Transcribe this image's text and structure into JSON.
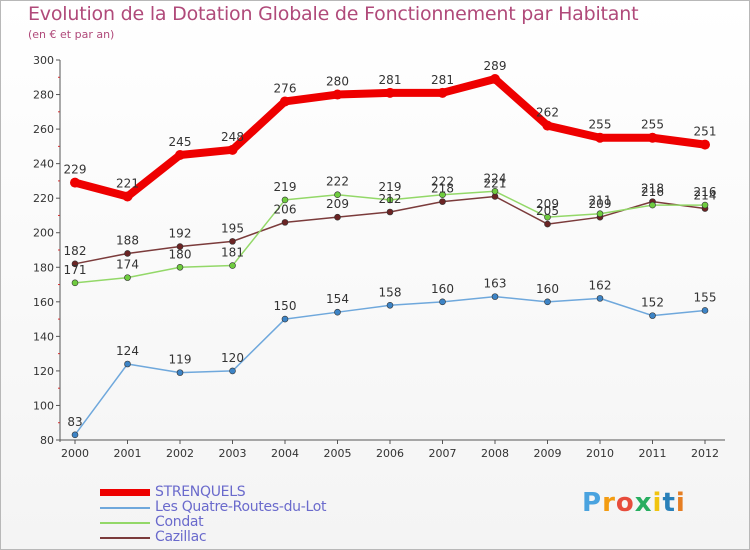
{
  "title": "Evolution de la Dotation Globale de Fonctionnement par Habitant",
  "subtitle": "(en € et par an)",
  "logo": {
    "letters": [
      "P",
      "r",
      "o",
      "x",
      "i",
      "t",
      "i"
    ],
    "colors": [
      "#4aa3df",
      "#f39c12",
      "#e74c3c",
      "#27ae60",
      "#f1c40f",
      "#2980b9",
      "#e67e22"
    ]
  },
  "chart_data": {
    "type": "line",
    "categories": [
      "2000",
      "2001",
      "2002",
      "2003",
      "2004",
      "2005",
      "2006",
      "2007",
      "2008",
      "2009",
      "2010",
      "2011",
      "2012"
    ],
    "ylim": [
      80,
      300
    ],
    "yticks": [
      80,
      100,
      120,
      140,
      160,
      180,
      200,
      220,
      240,
      260,
      280,
      300
    ],
    "grid": false,
    "legend_position": "bottom-left",
    "series": [
      {
        "name": "STRENQUELS",
        "color": "#ee0000",
        "values": [
          229,
          221,
          245,
          248,
          276,
          280,
          281,
          281,
          289,
          262,
          255,
          255,
          251
        ],
        "thick": true
      },
      {
        "name": "Les Quatre-Routes-du-Lot",
        "color": "#6fa8dc",
        "values": [
          83,
          124,
          119,
          120,
          150,
          154,
          158,
          160,
          163,
          160,
          162,
          152,
          155
        ],
        "thick": false
      },
      {
        "name": "Condat",
        "color": "#93d868",
        "values": [
          171,
          174,
          180,
          181,
          219,
          222,
          219,
          222,
          224,
          209,
          211,
          216,
          216
        ],
        "thick": false
      },
      {
        "name": "Cazillac",
        "color": "#7b3b3b",
        "values": [
          182,
          188,
          192,
          195,
          206,
          209,
          212,
          218,
          221,
          205,
          209,
          218,
          214
        ],
        "thick": false
      }
    ]
  }
}
